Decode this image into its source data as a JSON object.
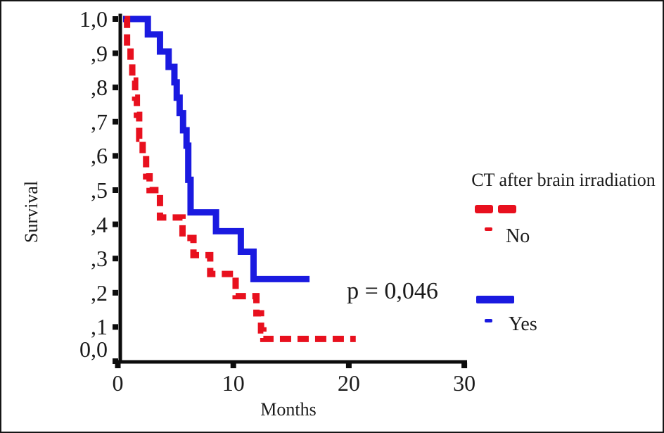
{
  "figure": {
    "annotation": "p = 0,046"
  },
  "legend": {
    "title": "CT after brain irradiation",
    "items": [
      {
        "label": "No",
        "color": "#e8101e",
        "style": "dashed"
      },
      {
        "label": "Yes",
        "color": "#1a1ae0",
        "style": "solid"
      }
    ]
  },
  "chart_data": {
    "type": "line",
    "subtype": "kaplan-meier-step",
    "title": "",
    "xlabel": "Months",
    "ylabel": "Survival",
    "annotation": "p = 0,046",
    "xlim": [
      0,
      30
    ],
    "ylim": [
      0.0,
      1.0
    ],
    "grid": false,
    "legend_position": "right",
    "axis_color": "#0c0c0c",
    "x_ticks": [
      {
        "label": "0",
        "value": 0
      },
      {
        "label": "10",
        "value": 10
      },
      {
        "label": "20",
        "value": 20
      },
      {
        "label": "30",
        "value": 30
      }
    ],
    "y_ticks": [
      {
        "label": "1,0",
        "value": 1.0
      },
      {
        "label": ",9",
        "value": 0.9
      },
      {
        "label": ",8",
        "value": 0.8
      },
      {
        "label": ",7",
        "value": 0.7
      },
      {
        "label": ",6",
        "value": 0.6
      },
      {
        "label": ",5",
        "value": 0.5
      },
      {
        "label": ",4",
        "value": 0.4
      },
      {
        "label": ",3",
        "value": 0.3
      },
      {
        "label": ",2",
        "value": 0.2
      },
      {
        "label": ",1",
        "value": 0.1
      },
      {
        "label": "0,0",
        "value": 0.0,
        "dy": -17
      }
    ],
    "series": [
      {
        "name": "Yes",
        "color": "#1a1ae0",
        "line_style": "solid",
        "points": [
          [
            0.45,
            1.0
          ],
          [
            2.6,
            0.955
          ],
          [
            3.65,
            0.905
          ],
          [
            4.4,
            0.86
          ],
          [
            4.9,
            0.815
          ],
          [
            5.1,
            0.77
          ],
          [
            5.35,
            0.725
          ],
          [
            5.65,
            0.675
          ],
          [
            5.95,
            0.63
          ],
          [
            6.1,
            0.53
          ],
          [
            6.3,
            0.435
          ],
          [
            8.5,
            0.38
          ],
          [
            10.65,
            0.32
          ],
          [
            11.75,
            0.24
          ]
        ],
        "end_month": 16.6
      },
      {
        "name": "No",
        "color": "#e8101e",
        "line_style": "dashed",
        "points": [
          [
            0.6,
            1.0
          ],
          [
            0.8,
            0.92
          ],
          [
            1.1,
            0.87
          ],
          [
            1.25,
            0.82
          ],
          [
            1.5,
            0.77
          ],
          [
            1.65,
            0.72
          ],
          [
            1.85,
            0.65
          ],
          [
            2.15,
            0.6
          ],
          [
            2.45,
            0.54
          ],
          [
            2.75,
            0.5
          ],
          [
            3.65,
            0.42
          ],
          [
            5.6,
            0.36
          ],
          [
            6.55,
            0.31
          ],
          [
            8.0,
            0.255
          ],
          [
            10.2,
            0.19
          ],
          [
            12.0,
            0.14
          ],
          [
            12.4,
            0.09
          ],
          [
            12.6,
            0.065
          ]
        ],
        "end_month": 20.6
      }
    ]
  }
}
